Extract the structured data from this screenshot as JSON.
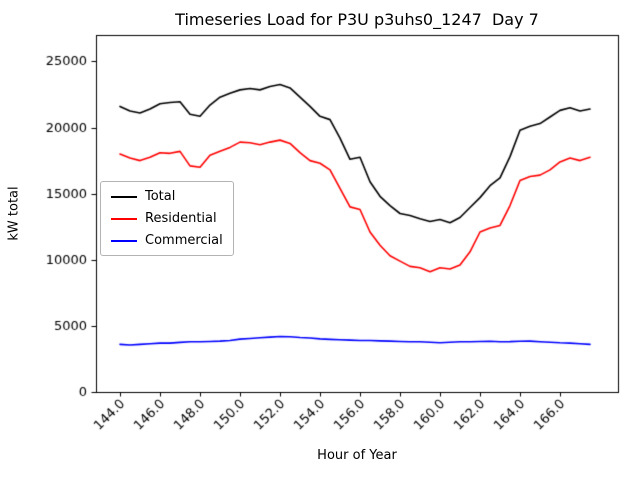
{
  "chart_data": {
    "type": "line",
    "title": "Timeseries Load for P3U p3uhs0_1247  Day 7",
    "xlabel": "Hour of Year",
    "ylabel": "kW total",
    "grid": false,
    "legend_position": "center left inside",
    "xlim": [
      142.8,
      168.9
    ],
    "ylim": [
      0,
      27000
    ],
    "xticks": [
      144,
      146,
      148,
      150,
      152,
      154,
      156,
      158,
      160,
      162,
      164,
      166
    ],
    "xtick_labels": [
      "144.0",
      "146.0",
      "148.0",
      "150.0",
      "152.0",
      "154.0",
      "156.0",
      "158.0",
      "160.0",
      "162.0",
      "164.0",
      "166.0"
    ],
    "yticks": [
      0,
      5000,
      10000,
      15000,
      20000,
      25000
    ],
    "ytick_labels": [
      "0",
      "5000",
      "10000",
      "15000",
      "20000",
      "25000"
    ],
    "x": [
      144.0,
      144.5,
      145.0,
      145.5,
      146.0,
      146.5,
      147.0,
      147.5,
      148.0,
      148.5,
      149.0,
      149.5,
      150.0,
      150.5,
      151.0,
      151.5,
      152.0,
      152.5,
      153.0,
      153.5,
      154.0,
      154.5,
      155.0,
      155.5,
      156.0,
      156.5,
      157.0,
      157.5,
      158.0,
      158.5,
      159.0,
      159.5,
      160.0,
      160.5,
      161.0,
      161.5,
      162.0,
      162.5,
      163.0,
      163.5,
      164.0,
      164.5,
      165.0,
      165.5,
      166.0,
      166.5,
      167.0,
      167.5
    ],
    "series": [
      {
        "name": "Total",
        "color": "#000000",
        "values": [
          21600,
          21250,
          21100,
          21400,
          21800,
          21900,
          21950,
          21000,
          20850,
          21700,
          22300,
          22600,
          22850,
          22950,
          22850,
          23100,
          23250,
          23000,
          22300,
          21600,
          20850,
          20600,
          19200,
          17600,
          17750,
          15900,
          14800,
          14100,
          13500,
          13350,
          13100,
          12900,
          13050,
          12800,
          13200,
          13950,
          14700,
          15600,
          16200,
          17800,
          19800,
          20100,
          20300,
          20800,
          21300,
          21500,
          21250,
          21400
        ]
      },
      {
        "name": "Residential",
        "color": "#ff0000",
        "values": [
          18000,
          17700,
          17500,
          17750,
          18100,
          18050,
          18200,
          17100,
          17000,
          17900,
          18200,
          18500,
          18900,
          18850,
          18700,
          18900,
          19050,
          18800,
          18100,
          17500,
          17300,
          16800,
          15400,
          14000,
          13800,
          12100,
          11100,
          10300,
          9900,
          9500,
          9400,
          9100,
          9400,
          9300,
          9600,
          10600,
          12100,
          12400,
          12600,
          14100,
          16000,
          16300,
          16400,
          16800,
          17400,
          17700,
          17500,
          17750
        ]
      },
      {
        "name": "Commercial",
        "color": "#0000ff",
        "values": [
          3600,
          3550,
          3600,
          3650,
          3700,
          3700,
          3750,
          3800,
          3800,
          3820,
          3850,
          3900,
          4000,
          4050,
          4100,
          4150,
          4200,
          4180,
          4120,
          4080,
          4020,
          3980,
          3950,
          3920,
          3900,
          3900,
          3870,
          3850,
          3820,
          3800,
          3800,
          3760,
          3720,
          3760,
          3800,
          3800,
          3820,
          3840,
          3800,
          3810,
          3840,
          3850,
          3800,
          3760,
          3720,
          3700,
          3650,
          3600
        ]
      }
    ]
  }
}
